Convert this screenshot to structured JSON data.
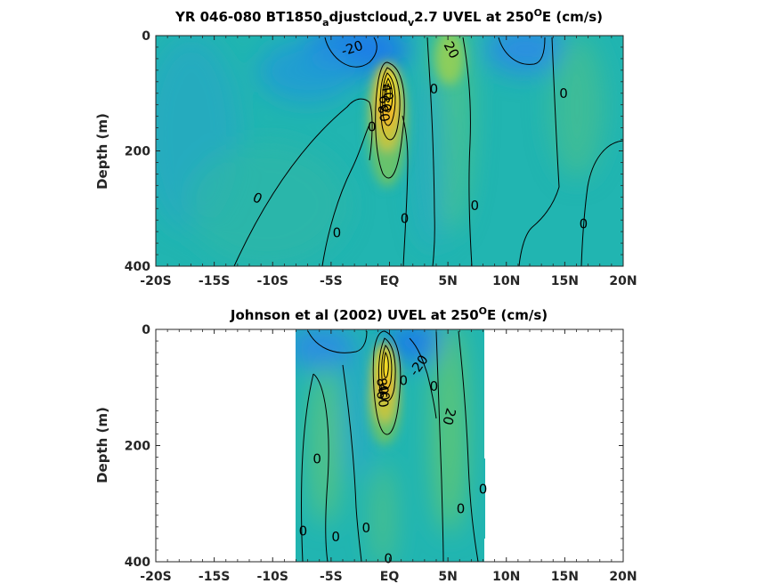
{
  "chart_data": [
    {
      "type": "heatmap",
      "subtype": "filled-contour",
      "title_main": "YR 046-080 BT1850",
      "title_sub1": "a",
      "title_mid": "djustcloud",
      "title_sub2": "v",
      "title_end": "2.7 UVEL at 250",
      "title_sup": "O",
      "title_tail": "E (cm/s)",
      "ylabel": "Depth (m)",
      "xlim": [
        -20,
        20
      ],
      "ylim": [
        400,
        0
      ],
      "x_ticks": [
        -20,
        -15,
        -10,
        -5,
        0,
        5,
        10,
        15,
        20
      ],
      "x_tick_labels": [
        "-20S",
        "-15S",
        "-10S",
        "-5S",
        "EQ",
        "5N",
        "10N",
        "15N",
        "20N"
      ],
      "y_ticks": [
        0,
        200,
        400
      ],
      "y_tick_labels": [
        "0",
        "200",
        "400"
      ],
      "data_extent_x": [
        -20,
        20
      ],
      "features": [
        {
          "kind": "jet",
          "lat": -0.3,
          "depth": 90,
          "value": 100
        },
        {
          "kind": "westward",
          "lat": -3.5,
          "depth": 20,
          "value": -25
        },
        {
          "kind": "westward",
          "lat": 11,
          "depth": 20,
          "value": -20
        },
        {
          "kind": "eastward",
          "lat": 5.5,
          "depth": 40,
          "value": 20
        }
      ],
      "contour_labels": [
        {
          "text": "-20",
          "lat": -3.2,
          "depth": 22,
          "angle": -18
        },
        {
          "text": "20",
          "lat": 5.3,
          "depth": 25,
          "angle": 62
        },
        {
          "text": "0",
          "lat": 3.8,
          "depth": 93,
          "angle": 0
        },
        {
          "text": "0",
          "lat": 14.9,
          "depth": 100,
          "angle": 0
        },
        {
          "text": "40",
          "lat": -0.2,
          "depth": 98,
          "angle": 80
        },
        {
          "text": "60",
          "lat": -0.4,
          "depth": 118,
          "angle": 80
        },
        {
          "text": "80",
          "lat": -0.5,
          "depth": 135,
          "angle": 80
        },
        {
          "text": "0",
          "lat": -1.5,
          "depth": 158,
          "angle": 0
        },
        {
          "text": "0",
          "lat": -11.3,
          "depth": 282,
          "angle": 25
        },
        {
          "text": "0",
          "lat": 1.3,
          "depth": 317,
          "angle": 0
        },
        {
          "text": "0",
          "lat": 7.3,
          "depth": 295,
          "angle": 0
        },
        {
          "text": "0",
          "lat": -4.5,
          "depth": 342,
          "angle": 0
        },
        {
          "text": "0",
          "lat": 16.6,
          "depth": 327,
          "angle": 0
        }
      ]
    },
    {
      "type": "heatmap",
      "subtype": "filled-contour",
      "title_main": "Johnson et al (2002) UVEL at 250",
      "title_sup": "O",
      "title_tail": "E (cm/s)",
      "ylabel": "Depth (m)",
      "xlim": [
        -20,
        20
      ],
      "ylim": [
        400,
        0
      ],
      "x_ticks": [
        -20,
        -15,
        -10,
        -5,
        0,
        5,
        10,
        15,
        20
      ],
      "x_tick_labels": [
        "-20S",
        "-15S",
        "-10S",
        "-5S",
        "EQ",
        "5N",
        "10N",
        "15N",
        "20N"
      ],
      "y_ticks": [
        0,
        200,
        400
      ],
      "y_tick_labels": [
        "0",
        "200",
        "400"
      ],
      "data_extent_x": [
        -8,
        8.2
      ],
      "features": [
        {
          "kind": "jet",
          "lat": -0.3,
          "depth": 70,
          "value": 110
        },
        {
          "kind": "westward",
          "lat": 2,
          "depth": 15,
          "value": -25
        },
        {
          "kind": "eastward",
          "lat": 5.5,
          "depth": 120,
          "value": 20
        }
      ],
      "contour_labels": [
        {
          "text": "-20",
          "lat": 2.5,
          "depth": 62,
          "angle": -55
        },
        {
          "text": "0",
          "lat": 1.2,
          "depth": 88,
          "angle": 0
        },
        {
          "text": "0",
          "lat": 3.8,
          "depth": 98,
          "angle": 0
        },
        {
          "text": "20",
          "lat": 5.1,
          "depth": 150,
          "angle": 105
        },
        {
          "text": "40",
          "lat": -0.5,
          "depth": 108,
          "angle": 80
        },
        {
          "text": "60",
          "lat": -0.6,
          "depth": 120,
          "angle": 80
        },
        {
          "text": "80",
          "lat": -0.6,
          "depth": 98,
          "angle": 80
        },
        {
          "text": "0",
          "lat": -6.2,
          "depth": 223,
          "angle": 0
        },
        {
          "text": "0",
          "lat": 8,
          "depth": 275,
          "angle": 0
        },
        {
          "text": "0",
          "lat": 6.1,
          "depth": 309,
          "angle": 0
        },
        {
          "text": "0",
          "lat": -7.4,
          "depth": 347,
          "angle": 0
        },
        {
          "text": "0",
          "lat": -4.6,
          "depth": 357,
          "angle": 0
        },
        {
          "text": "0",
          "lat": -2,
          "depth": 342,
          "angle": 0
        },
        {
          "text": "0",
          "lat": -0.1,
          "depth": 395,
          "angle": 0
        }
      ]
    }
  ],
  "colors": {
    "background": "#ffffff",
    "field_neutral": "#21b5b1",
    "field_negative": "#1a7ee6",
    "field_positive": "#8ccd5c",
    "jet_high": "#fbe51f",
    "contour": "#000000",
    "axis": "#262626"
  }
}
